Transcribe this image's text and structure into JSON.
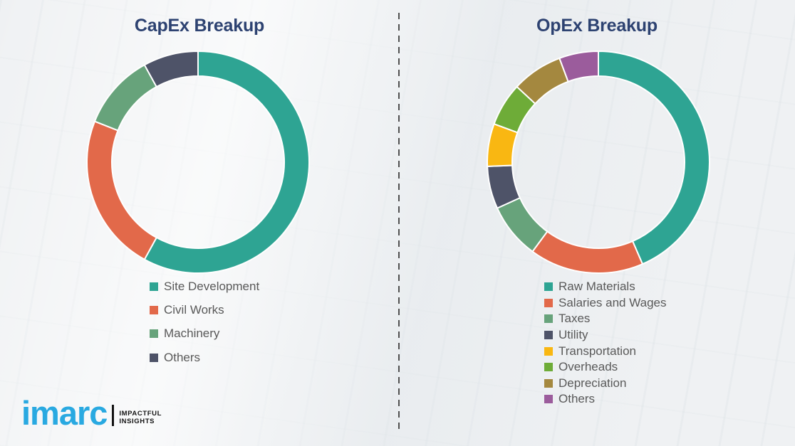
{
  "theme": {
    "background_color": "#EFF1F3",
    "title_color": "#2D4271",
    "legend_text_color": "#595959",
    "divider_color": "#4F4F4F",
    "logo_blue": "#29A9E1",
    "logo_dark": "#141414"
  },
  "chart_data": [
    {
      "type": "pie",
      "donut": true,
      "title": "CapEx Breakup",
      "categories": [
        "Site Development",
        "Civil Works",
        "Machinery",
        "Others"
      ],
      "values": [
        58,
        23,
        11,
        8
      ],
      "colors": [
        "#2EA493",
        "#E2694A",
        "#67A37B",
        "#4E5368"
      ],
      "unit": "% (estimated from arc angles, no numeric labels shown)",
      "value_labels_shown": false,
      "legend_position": "below-chart-left",
      "start_angle": "12 o'clock, clockwise",
      "slice_gap_color": "#FFFFFF"
    },
    {
      "type": "pie",
      "donut": true,
      "title": "OpEx Breakup",
      "categories": [
        "Raw Materials",
        "Salaries and Wages",
        "Taxes",
        "Utility",
        "Transportation",
        "Overheads",
        "Depreciation",
        "Others"
      ],
      "values": [
        43.5,
        16.6,
        8.1,
        6.2,
        6.2,
        6.3,
        7.4,
        5.7
      ],
      "colors": [
        "#2EA493",
        "#E2694A",
        "#67A37B",
        "#4E5368",
        "#F9B712",
        "#6EAC38",
        "#A4883F",
        "#9B5C9C"
      ],
      "unit": "% (estimated from arc angles, no numeric labels shown)",
      "value_labels_shown": false,
      "legend_position": "below-chart-left",
      "start_angle": "12 o'clock, clockwise",
      "slice_gap_color": "#FFFFFF"
    }
  ],
  "logo": {
    "brand": "imarc",
    "tagline_line1": "IMPACTFUL",
    "tagline_line2": "INSIGHTS"
  }
}
